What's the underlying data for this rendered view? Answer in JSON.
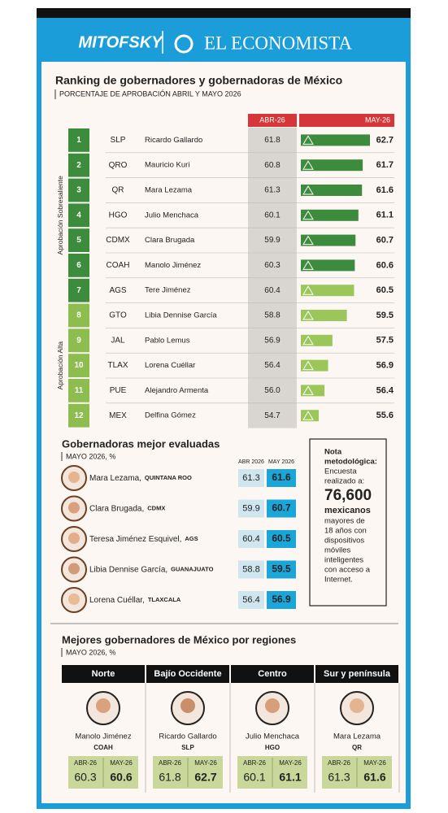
{
  "header": {
    "brand1": "MITOFSKY",
    "brand2": "EL ECONOMISTA"
  },
  "ranking": {
    "title": "Ranking de gobernadores y gobernadoras de México",
    "subtitle": "PORCENTAJE DE APROBACIÓN ABRIL Y MAYO 2026",
    "columns": [
      "ABR-26",
      "MAY-26"
    ],
    "groups": [
      "Aprobación Sobresaliente",
      "Aprobación Alta"
    ],
    "rows": [
      {
        "rank": 1,
        "state": "SLP",
        "name": "Ricardo Gallardo",
        "abr": "61.8",
        "may": 62.7
      },
      {
        "rank": 2,
        "state": "QRO",
        "name": "Mauricio Kuri",
        "abr": "60.8",
        "may": 61.7
      },
      {
        "rank": 3,
        "state": "QR",
        "name": "Mara Lezama",
        "abr": "61.3",
        "may": 61.6
      },
      {
        "rank": 4,
        "state": "HGO",
        "name": "Julio Menchaca",
        "abr": "60.1",
        "may": 61.1
      },
      {
        "rank": 5,
        "state": "CDMX",
        "name": "Clara Brugada",
        "abr": "59.9",
        "may": 60.7
      },
      {
        "rank": 6,
        "state": "COAH",
        "name": "Manolo Jiménez",
        "abr": "60.3",
        "may": 60.6
      },
      {
        "rank": 7,
        "state": "AGS",
        "name": "Tere Jiménez",
        "abr": "60.4",
        "may": 60.5
      },
      {
        "rank": 8,
        "state": "GTO",
        "name": "Libia Dennise García",
        "abr": "58.8",
        "may": 59.5
      },
      {
        "rank": 9,
        "state": "JAL",
        "name": "Pablo Lemus",
        "abr": "56.9",
        "may": 57.5
      },
      {
        "rank": 10,
        "state": "TLAX",
        "name": "Lorena Cuéllar",
        "abr": "56.4",
        "may": 56.9
      },
      {
        "rank": 11,
        "state": "PUE",
        "name": "Alejandro Armenta",
        "abr": "56.0",
        "may": 56.4
      },
      {
        "rank": 12,
        "state": "MEX",
        "name": "Delfina Gómez",
        "abr": "54.7",
        "may": 55.6
      }
    ]
  },
  "governors": {
    "title": "Gobernadoras mejor evaluadas",
    "subtitle": "MAYO 2026, %",
    "columns": [
      "ABR 2026",
      "MAY 2026"
    ],
    "rows": [
      {
        "name": "Mara Lezama,",
        "state": "QUINTANA ROO",
        "abr": "61.3",
        "may": "61.6"
      },
      {
        "name": "Clara Brugada,",
        "state": "CDMX",
        "abr": "59.9",
        "may": "60.7"
      },
      {
        "name": "Teresa Jiménez Esquivel,",
        "state": "AGS",
        "abr": "60.4",
        "may": "60.5"
      },
      {
        "name": "Libia Dennise García,",
        "state": "GUANAJUATO",
        "abr": "58.8",
        "may": "59.5"
      },
      {
        "name": "Lorena Cuéllar,",
        "state": "TLAXCALA",
        "abr": "56.4",
        "may": "56.9"
      }
    ]
  },
  "note": {
    "title": [
      "Nota",
      "metodológica:"
    ],
    "intro": [
      "Encuesta",
      "realizado a:"
    ],
    "number": "76,600",
    "unit": "mexicanos",
    "lines": [
      "mayores de",
      "18 años con",
      "dispositivos",
      "móviles",
      "inteligentes",
      "con acceso a",
      "Internet."
    ]
  },
  "regions": {
    "title": "Mejores gobernadores de México por regiones",
    "subtitle": "MAYO 2026, %",
    "columns": [
      {
        "region": "Norte",
        "name": "Manolo Jiménez",
        "state": "COAH",
        "abr": "60.3",
        "may": "60.6"
      },
      {
        "region": "Bajío Occidente",
        "name": "Ricardo Gallardo",
        "state": "SLP",
        "abr": "61.8",
        "may": "62.7"
      },
      {
        "region": "Centro",
        "name": "Julio Menchaca",
        "state": "HGO",
        "abr": "60.1",
        "may": "61.1"
      },
      {
        "region": "Sur y península",
        "name": "Mara Lezama",
        "state": "QR",
        "abr": "61.3",
        "may": "61.6"
      }
    ]
  }
}
